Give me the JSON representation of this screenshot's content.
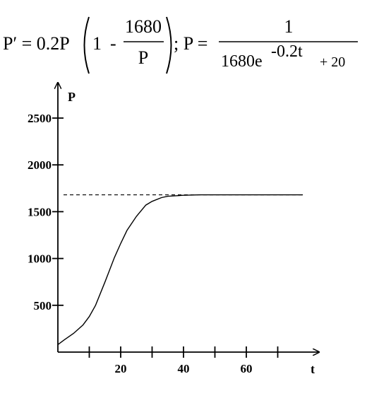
{
  "equation": {
    "lhs": "P′ = 0.2P",
    "one": "1",
    "minus": "-",
    "numerator": "1680",
    "denominator_p": "P",
    "separator": "; P =",
    "rhs_numerator": "1",
    "rhs_den_base": "1680e",
    "rhs_den_exp": "-0.2t",
    "rhs_den_tail": "+ 20"
  },
  "chart_data": {
    "type": "line",
    "xlabel": "t",
    "ylabel": "P",
    "xlim": [
      0,
      80
    ],
    "ylim": [
      0,
      2700
    ],
    "x_ticks": [
      0,
      10,
      20,
      30,
      40,
      50,
      60,
      70
    ],
    "x_tick_labels": [
      {
        "value": 20,
        "label": "20"
      },
      {
        "value": 40,
        "label": "40"
      },
      {
        "value": 60,
        "label": "60"
      }
    ],
    "y_ticks": [
      500,
      1000,
      1500,
      2000,
      2500
    ],
    "y_tick_labels": [
      "500",
      "1000",
      "1500",
      "2000",
      "2500"
    ],
    "asymptote": 1680,
    "series": [
      {
        "x": [
          0,
          2,
          5,
          8,
          10,
          12,
          15,
          18,
          20,
          22,
          25,
          28,
          30,
          33,
          35,
          40,
          45,
          50,
          55,
          60,
          65,
          70,
          78
        ],
        "y": [
          80,
          130,
          200,
          290,
          380,
          500,
          750,
          1010,
          1160,
          1300,
          1450,
          1570,
          1610,
          1650,
          1665,
          1675,
          1680,
          1680,
          1680,
          1680,
          1680,
          1680,
          1680
        ]
      }
    ],
    "grid": false,
    "legend": "none"
  }
}
